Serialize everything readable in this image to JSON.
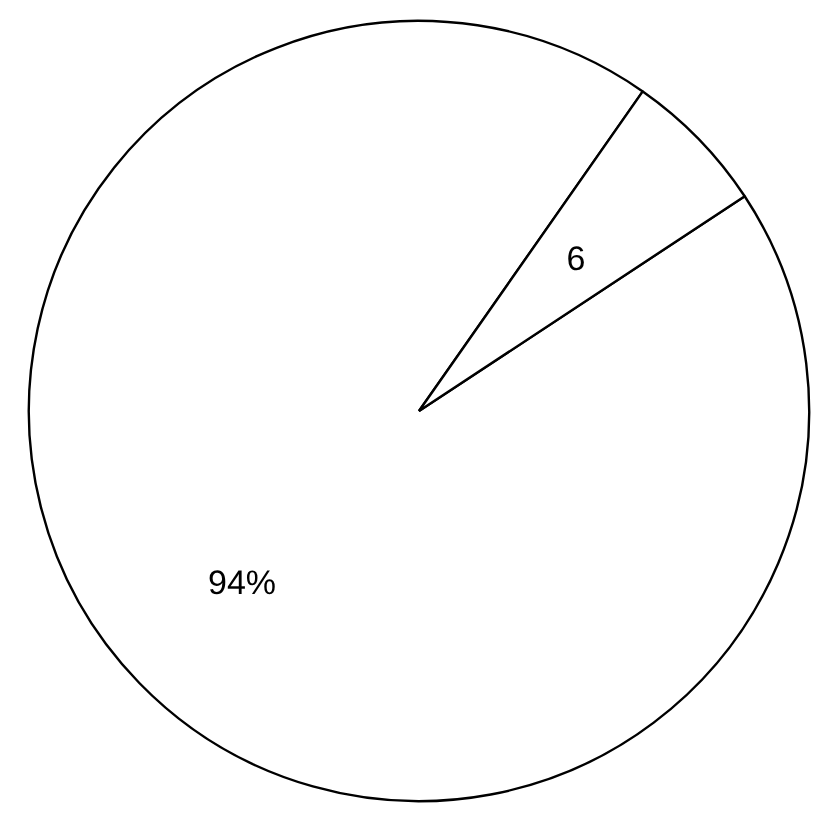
{
  "chart_data": {
    "type": "pie",
    "categories": [
      null,
      null
    ],
    "values": [
      94,
      6
    ],
    "colors": [
      "#ffffff",
      "#ffffff"
    ],
    "value_labels": [
      "94%",
      "6"
    ]
  }
}
